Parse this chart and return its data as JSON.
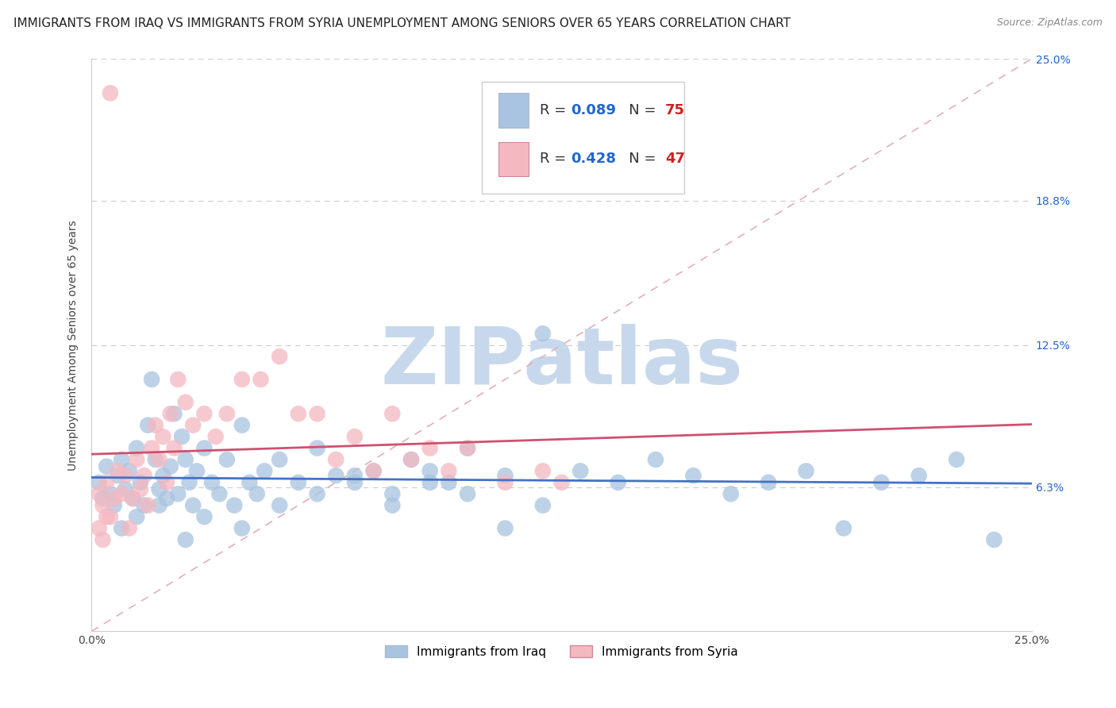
{
  "title": "IMMIGRANTS FROM IRAQ VS IMMIGRANTS FROM SYRIA UNEMPLOYMENT AMONG SENIORS OVER 65 YEARS CORRELATION CHART",
  "source": "Source: ZipAtlas.com",
  "ylabel": "Unemployment Among Seniors over 65 years",
  "xlim": [
    0.0,
    0.25
  ],
  "ylim": [
    0.0,
    0.25
  ],
  "xtick_positions": [
    0.0,
    0.25
  ],
  "xtick_labels": [
    "0.0%",
    "25.0%"
  ],
  "ytick_values": [
    0.063,
    0.125,
    0.188,
    0.25
  ],
  "ytick_labels": [
    "6.3%",
    "12.5%",
    "18.8%",
    "25.0%"
  ],
  "iraq_R": 0.089,
  "iraq_N": 75,
  "syria_R": 0.428,
  "syria_N": 47,
  "iraq_color": "#a8c4e0",
  "iraq_line_color": "#4472c4",
  "syria_color": "#f4b8c1",
  "syria_line_color": "#d05070",
  "diag_color": "#d8a0a8",
  "background_color": "#ffffff",
  "watermark_color": "#c8d8ec",
  "title_fontsize": 11,
  "source_fontsize": 9,
  "axis_label_fontsize": 10,
  "tick_fontsize": 10,
  "legend_fontsize": 13,
  "grid_color": "#cccccc",
  "iraq_x": [
    0.002,
    0.003,
    0.004,
    0.005,
    0.006,
    0.007,
    0.008,
    0.009,
    0.01,
    0.011,
    0.012,
    0.013,
    0.014,
    0.015,
    0.016,
    0.017,
    0.018,
    0.019,
    0.02,
    0.021,
    0.022,
    0.023,
    0.024,
    0.025,
    0.026,
    0.027,
    0.028,
    0.03,
    0.032,
    0.034,
    0.036,
    0.038,
    0.04,
    0.042,
    0.044,
    0.046,
    0.05,
    0.055,
    0.06,
    0.065,
    0.07,
    0.075,
    0.08,
    0.085,
    0.09,
    0.095,
    0.1,
    0.11,
    0.12,
    0.13,
    0.14,
    0.15,
    0.16,
    0.17,
    0.18,
    0.19,
    0.2,
    0.21,
    0.22,
    0.23,
    0.008,
    0.012,
    0.018,
    0.025,
    0.03,
    0.04,
    0.05,
    0.06,
    0.07,
    0.08,
    0.09,
    0.1,
    0.11,
    0.12,
    0.24
  ],
  "iraq_y": [
    0.065,
    0.058,
    0.072,
    0.06,
    0.055,
    0.068,
    0.075,
    0.062,
    0.07,
    0.058,
    0.08,
    0.065,
    0.055,
    0.09,
    0.11,
    0.075,
    0.062,
    0.068,
    0.058,
    0.072,
    0.095,
    0.06,
    0.085,
    0.075,
    0.065,
    0.055,
    0.07,
    0.08,
    0.065,
    0.06,
    0.075,
    0.055,
    0.09,
    0.065,
    0.06,
    0.07,
    0.075,
    0.065,
    0.08,
    0.068,
    0.065,
    0.07,
    0.06,
    0.075,
    0.07,
    0.065,
    0.08,
    0.068,
    0.13,
    0.07,
    0.065,
    0.075,
    0.068,
    0.06,
    0.065,
    0.07,
    0.045,
    0.065,
    0.068,
    0.075,
    0.045,
    0.05,
    0.055,
    0.04,
    0.05,
    0.045,
    0.055,
    0.06,
    0.068,
    0.055,
    0.065,
    0.06,
    0.045,
    0.055,
    0.04
  ],
  "syria_x": [
    0.002,
    0.003,
    0.004,
    0.005,
    0.006,
    0.007,
    0.008,
    0.009,
    0.01,
    0.011,
    0.012,
    0.013,
    0.014,
    0.015,
    0.016,
    0.017,
    0.018,
    0.019,
    0.02,
    0.021,
    0.022,
    0.023,
    0.025,
    0.027,
    0.03,
    0.033,
    0.036,
    0.04,
    0.045,
    0.05,
    0.055,
    0.06,
    0.065,
    0.07,
    0.075,
    0.08,
    0.085,
    0.09,
    0.095,
    0.1,
    0.11,
    0.12,
    0.125,
    0.002,
    0.003,
    0.004,
    0.005
  ],
  "syria_y": [
    0.06,
    0.055,
    0.065,
    0.05,
    0.058,
    0.07,
    0.06,
    0.068,
    0.045,
    0.058,
    0.075,
    0.062,
    0.068,
    0.055,
    0.08,
    0.09,
    0.075,
    0.085,
    0.065,
    0.095,
    0.08,
    0.11,
    0.1,
    0.09,
    0.095,
    0.085,
    0.095,
    0.11,
    0.11,
    0.12,
    0.095,
    0.095,
    0.075,
    0.085,
    0.07,
    0.095,
    0.075,
    0.08,
    0.07,
    0.08,
    0.065,
    0.07,
    0.065,
    0.045,
    0.04,
    0.05,
    0.235
  ]
}
